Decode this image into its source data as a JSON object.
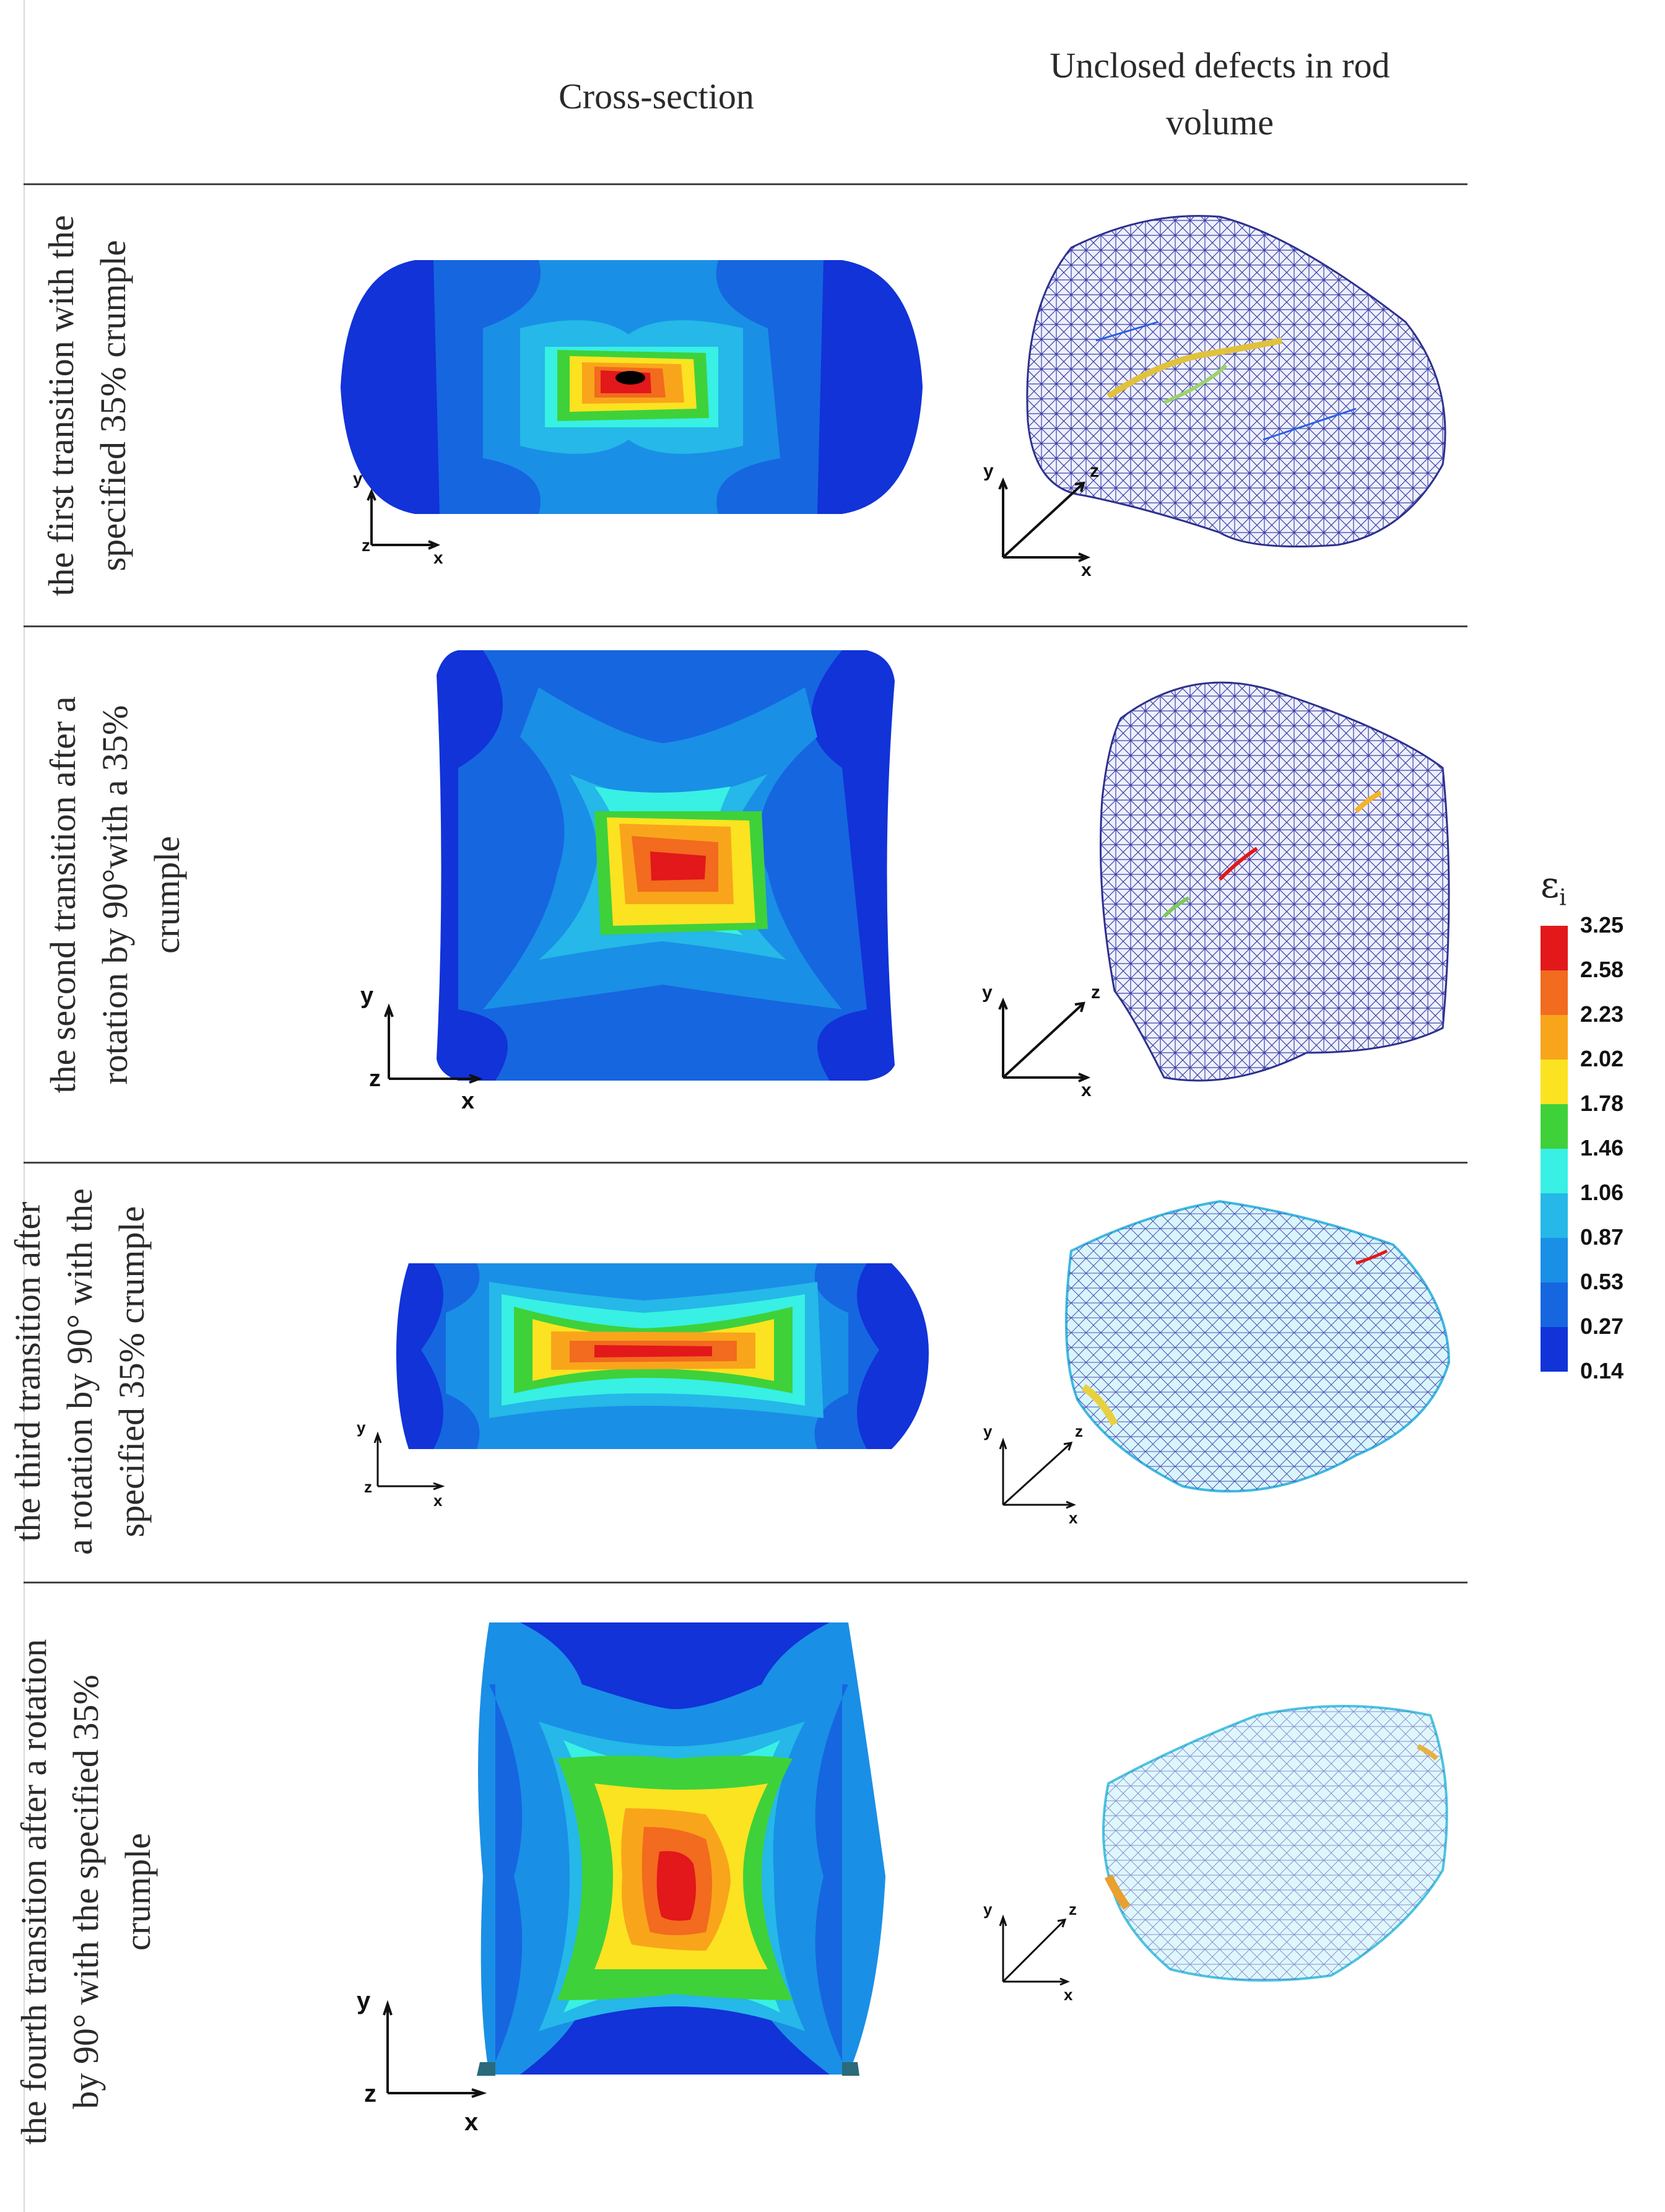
{
  "headers": {
    "cross_section": "Cross-section",
    "defects_line1": "Unclosed defects in rod",
    "defects_line2": "volume"
  },
  "rows": [
    {
      "label_line1": "the first transition with the",
      "label_line2": "specified 35% crumple",
      "label_line3": ""
    },
    {
      "label_line1": "the second transition after a",
      "label_line2": "rotation by 90°with a 35%",
      "label_line3": "crumple"
    },
    {
      "label_line1": "the third transition after",
      "label_line2": "a rotation by 90° with the",
      "label_line3": "specified 35% crumple"
    },
    {
      "label_line1": "the fourth transition after a rotation",
      "label_line2": "by 90° with the specified 35%",
      "label_line3": "crumple"
    }
  ],
  "axes": {
    "x": "x",
    "y": "y",
    "z": "z"
  },
  "legend": {
    "symbol": "ε",
    "subscript": "i",
    "values": [
      "3.25",
      "2.58",
      "2.23",
      "2.02",
      "1.78",
      "1.46",
      "1.06",
      "0.87",
      "0.53",
      "0.27",
      "0.14"
    ],
    "colors": [
      "#e2181a",
      "#f26b1e",
      "#f9a51b",
      "#fbe321",
      "#3fd13a",
      "#38f0e4",
      "#25b8e8",
      "#1a8fe6",
      "#1666e0",
      "#1133d8"
    ]
  }
}
